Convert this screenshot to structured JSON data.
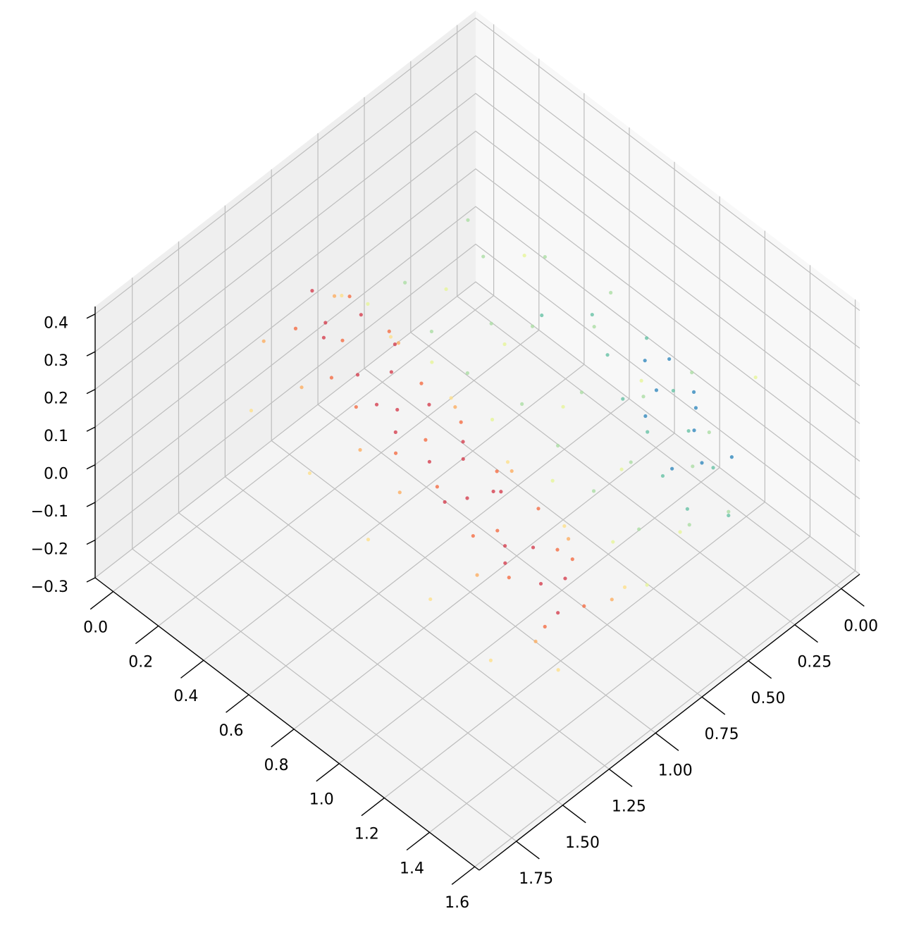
{
  "chart_data": {
    "type": "scatter3d",
    "xlim": [
      -0.08,
      1.62
    ],
    "ylim": [
      -0.1,
      1.95
    ],
    "zlim": [
      -0.3,
      0.42
    ],
    "xticks": [
      {
        "value": 0,
        "label": "0.0"
      },
      0.2,
      0.4,
      0.6,
      0.8,
      {
        "value": 1,
        "label": "1.0"
      },
      1.2,
      1.4,
      1.6
    ],
    "yticks": [
      {
        "value": 0,
        "label": "0.00"
      },
      0.25,
      {
        "value": 0.5,
        "label": "0.50"
      },
      0.75,
      {
        "value": 1,
        "label": "1.00"
      },
      1.25,
      {
        "value": 1.5,
        "label": "1.50"
      },
      1.75
    ],
    "zticks": [
      {
        "value": -0.3,
        "label": "−0.3"
      },
      {
        "value": -0.2,
        "label": "−0.2"
      },
      {
        "value": -0.1,
        "label": "−0.1"
      },
      {
        "value": 0,
        "label": "0.0"
      },
      0.1,
      0.2,
      0.3,
      0.4
    ],
    "grid": true,
    "series": [
      {
        "color": "#d53e4f",
        "x": [
          0.1,
          0.2,
          0.3,
          0.4,
          0.5,
          0.6,
          0.7,
          0.8,
          0.9,
          1.0,
          1.1,
          1.2,
          1.3,
          1.4,
          1.5,
          0.25,
          0.45,
          0.65,
          0.85,
          1.05,
          1.25,
          1.45,
          0.55,
          0.95
        ],
        "y": [
          1.0,
          1.05,
          0.98,
          1.12,
          1.06,
          1.15,
          1.1,
          1.22,
          1.16,
          1.26,
          1.2,
          1.3,
          1.27,
          1.35,
          1.38,
          1.12,
          0.98,
          1.22,
          1.1,
          1.18,
          1.36,
          1.28,
          1.2,
          1.32
        ],
        "z": [
          0.18,
          0.16,
          0.2,
          0.14,
          0.17,
          0.15,
          0.19,
          0.13,
          0.16,
          0.14,
          0.18,
          0.12,
          0.15,
          0.13,
          0.11,
          0.17,
          0.19,
          0.14,
          0.16,
          0.15,
          0.12,
          0.14,
          0.16,
          0.13
        ]
      },
      {
        "color": "#f46d43",
        "x": [
          0.15,
          0.35,
          0.5,
          0.7,
          0.9,
          1.1,
          1.3,
          1.5,
          0.2,
          0.4,
          0.6,
          0.8,
          1.0,
          1.2,
          1.4,
          1.55,
          0.3,
          0.75,
          1.15,
          1.35
        ],
        "y": [
          1.15,
          1.2,
          1.25,
          1.28,
          1.3,
          1.35,
          1.4,
          1.45,
          0.92,
          0.95,
          1.02,
          1.05,
          1.1,
          1.12,
          1.18,
          1.3,
          1.08,
          1.18,
          1.28,
          1.2
        ],
        "z": [
          0.16,
          0.14,
          0.15,
          0.13,
          0.14,
          0.12,
          0.12,
          0.1,
          0.18,
          0.19,
          0.17,
          0.17,
          0.15,
          0.15,
          0.13,
          0.12,
          0.17,
          0.15,
          0.13,
          0.14
        ]
      },
      {
        "color": "#fdae61",
        "x": [
          0.1,
          0.4,
          0.7,
          1.0,
          1.3,
          1.55,
          0.3,
          0.8,
          1.2,
          1.5,
          0.05,
          0.6
        ],
        "y": [
          0.88,
          0.9,
          0.96,
          1.02,
          1.08,
          1.15,
          1.3,
          1.38,
          1.45,
          1.5,
          1.2,
          1.35
        ],
        "z": [
          0.12,
          0.14,
          0.13,
          0.12,
          0.1,
          0.08,
          0.13,
          0.11,
          0.1,
          0.08,
          0.1,
          0.12
        ]
      },
      {
        "color": "#fee08b",
        "x": [
          0.05,
          0.3,
          0.6,
          0.9,
          1.2,
          1.5,
          0.2,
          0.5,
          0.8,
          1.1,
          1.4,
          1.6
        ],
        "y": [
          0.78,
          0.82,
          0.86,
          0.92,
          0.98,
          1.02,
          1.45,
          1.5,
          1.55,
          1.58,
          1.62,
          1.5
        ],
        "z": [
          0.06,
          0.08,
          0.07,
          0.06,
          0.05,
          0.04,
          0.08,
          0.07,
          0.05,
          0.04,
          0.03,
          0.05
        ]
      },
      {
        "color": "#e6f598",
        "x": [
          0.1,
          0.4,
          0.7,
          1.0,
          1.3,
          1.5,
          0.2,
          0.5,
          0.8,
          1.1,
          1.4,
          0.3,
          0.9,
          1.2
        ],
        "y": [
          0.7,
          0.72,
          0.76,
          0.8,
          0.84,
          0.9,
          0.4,
          0.45,
          0.5,
          0.55,
          0.6,
          0.1,
          0.2,
          -0.05
        ],
        "z": [
          0.03,
          0.02,
          0.02,
          0.01,
          0.0,
          0.0,
          0.0,
          0.01,
          0.0,
          -0.01,
          -0.02,
          0.02,
          0.0,
          0.05
        ]
      },
      {
        "color": "#abdda4",
        "x": [
          0.05,
          0.2,
          0.35,
          0.5,
          0.65,
          0.8,
          0.95,
          1.1,
          1.25,
          1.4,
          0.1,
          0.3,
          0.5,
          0.7,
          0.9,
          1.1,
          1.3,
          1.45,
          0.4,
          0.6,
          1.0,
          1.2
        ],
        "y": [
          0.1,
          0.2,
          0.05,
          0.3,
          0.15,
          0.4,
          0.25,
          0.5,
          0.35,
          0.55,
          0.5,
          0.6,
          0.65,
          0.6,
          0.65,
          0.7,
          0.7,
          0.4,
          0.4,
          0.0,
          0.05,
          0.2
        ],
        "z": [
          0.0,
          0.01,
          0.02,
          0.0,
          0.01,
          0.0,
          0.0,
          -0.01,
          -0.01,
          -0.02,
          0.01,
          0.01,
          0.01,
          0.0,
          0.0,
          -0.01,
          -0.02,
          -0.02,
          0.0,
          0.02,
          0.01,
          0.0
        ]
      },
      {
        "color": "#66c2a5",
        "x": [
          0.6,
          0.75,
          0.9,
          1.05,
          1.2,
          1.35,
          0.8,
          1.0,
          1.15,
          1.3,
          0.5,
          1.45
        ],
        "y": [
          0.1,
          0.2,
          0.3,
          0.35,
          0.45,
          0.5,
          0.05,
          0.15,
          0.25,
          0.3,
          0.25,
          0.4
        ],
        "z": [
          0.0,
          0.0,
          -0.01,
          -0.01,
          -0.02,
          -0.02,
          0.01,
          0.0,
          0.0,
          -0.01,
          0.01,
          -0.03
        ]
      },
      {
        "color": "#3288bd",
        "x": [
          0.85,
          0.95,
          1.05,
          1.15,
          1.25,
          0.9,
          1.1,
          1.3,
          1.2,
          1.0
        ],
        "y": [
          0.12,
          0.18,
          0.1,
          0.22,
          0.3,
          0.05,
          0.15,
          0.2,
          0.4,
          0.3
        ],
        "z": [
          0.0,
          -0.01,
          0.0,
          -0.01,
          -0.02,
          0.0,
          0.0,
          -0.02,
          -0.02,
          -0.01
        ]
      }
    ]
  }
}
